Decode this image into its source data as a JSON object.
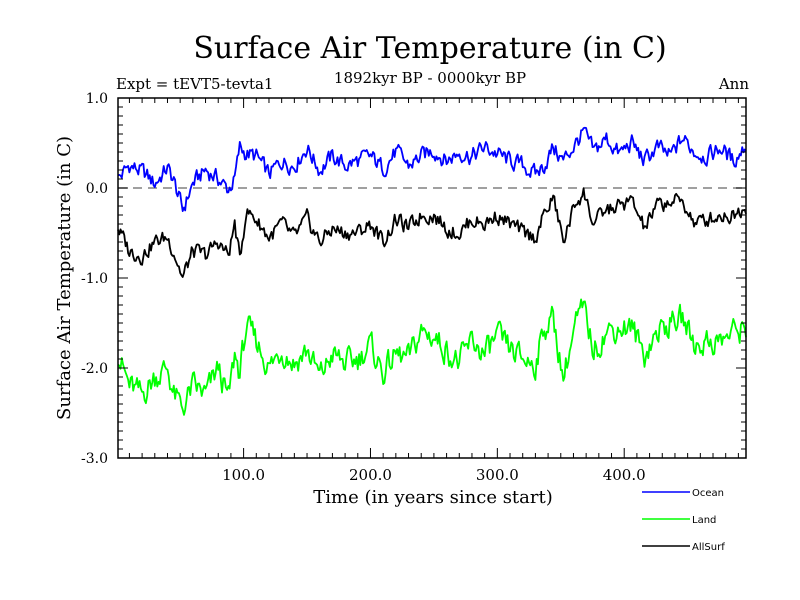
{
  "chart_data": {
    "type": "line",
    "title": "Surface Air Temperature (in C)",
    "subtitle": "1892kyr BP - 0000kyr BP",
    "left_label": "Expt = tEVT5-tevta1",
    "right_label": "Ann",
    "xlabel": "Time (in years since start)",
    "ylabel": "Surface Air Temperature (in C)",
    "xlim": [
      1,
      496
    ],
    "ylim": [
      -3.0,
      1.0
    ],
    "x_ticks": [
      100,
      200,
      300,
      400
    ],
    "x_tick_labels": [
      "100.0",
      "200.0",
      "300.0",
      "400.0"
    ],
    "y_ticks": [
      1.0,
      0.0,
      -1.0,
      -2.0,
      -3.0
    ],
    "y_tick_labels": [
      "1.0",
      "0.0",
      "-1.0",
      "-2.0",
      "-3.0"
    ],
    "reference_line": {
      "y": 0.0,
      "style": "dashed",
      "color": "#808080"
    },
    "legend_position": "bottom-right",
    "series": [
      {
        "name": "Ocean",
        "color": "#0000ff",
        "x": [
          1,
          10,
          20,
          30,
          40,
          45,
          52,
          60,
          70,
          80,
          88,
          93,
          97,
          102,
          110,
          120,
          130,
          140,
          150,
          160,
          170,
          180,
          190,
          200,
          210,
          220,
          230,
          240,
          250,
          260,
          270,
          280,
          290,
          300,
          310,
          320,
          330,
          337,
          344,
          352,
          362,
          368,
          376,
          386,
          396,
          406,
          416,
          426,
          436,
          446,
          456,
          466,
          476,
          486,
          496
        ],
        "values": [
          0.1,
          0.25,
          0.18,
          0.05,
          0.22,
          0.08,
          -0.25,
          0.05,
          0.2,
          0.1,
          -0.02,
          0.1,
          0.45,
          0.38,
          0.35,
          0.15,
          0.3,
          0.25,
          0.45,
          0.2,
          0.35,
          0.25,
          0.3,
          0.35,
          0.22,
          0.4,
          0.25,
          0.35,
          0.42,
          0.3,
          0.4,
          0.35,
          0.45,
          0.38,
          0.3,
          0.25,
          0.15,
          0.25,
          0.45,
          0.3,
          0.5,
          0.62,
          0.4,
          0.55,
          0.38,
          0.5,
          0.3,
          0.45,
          0.35,
          0.55,
          0.4,
          0.35,
          0.45,
          0.3,
          0.48
        ]
      },
      {
        "name": "Land",
        "color": "#00ff00",
        "x": [
          1,
          10,
          20,
          30,
          40,
          45,
          52,
          60,
          70,
          80,
          88,
          93,
          97,
          102,
          110,
          120,
          130,
          140,
          150,
          160,
          170,
          180,
          190,
          200,
          210,
          220,
          230,
          240,
          250,
          260,
          270,
          280,
          290,
          300,
          310,
          320,
          330,
          337,
          344,
          352,
          362,
          368,
          376,
          386,
          396,
          406,
          416,
          426,
          436,
          446,
          456,
          466,
          476,
          486,
          496
        ],
        "values": [
          -1.85,
          -2.2,
          -2.3,
          -2.1,
          -2.0,
          -2.3,
          -2.45,
          -2.2,
          -2.3,
          -2.0,
          -2.35,
          -1.85,
          -2.05,
          -1.55,
          -1.7,
          -2.0,
          -1.8,
          -1.95,
          -1.8,
          -2.1,
          -1.85,
          -1.95,
          -1.9,
          -1.75,
          -2.05,
          -1.85,
          -1.9,
          -1.6,
          -1.65,
          -1.8,
          -1.95,
          -1.7,
          -1.85,
          -1.65,
          -1.8,
          -1.9,
          -1.95,
          -1.55,
          -1.45,
          -2.1,
          -1.5,
          -1.35,
          -1.8,
          -1.6,
          -1.55,
          -1.55,
          -1.85,
          -1.6,
          -1.5,
          -1.45,
          -1.75,
          -1.7,
          -1.7,
          -1.6,
          -1.55
        ]
      },
      {
        "name": "AllSurf",
        "color": "#000000",
        "x": [
          1,
          10,
          20,
          30,
          40,
          45,
          52,
          60,
          70,
          80,
          88,
          93,
          97,
          102,
          110,
          120,
          130,
          140,
          150,
          160,
          170,
          180,
          190,
          200,
          210,
          220,
          230,
          240,
          250,
          260,
          270,
          280,
          290,
          300,
          310,
          320,
          330,
          337,
          344,
          352,
          362,
          368,
          376,
          386,
          396,
          406,
          416,
          426,
          436,
          446,
          456,
          466,
          476,
          486,
          496
        ],
        "values": [
          -0.45,
          -0.7,
          -0.75,
          -0.6,
          -0.55,
          -0.7,
          -1.0,
          -0.7,
          -0.75,
          -0.6,
          -0.75,
          -0.4,
          -0.8,
          -0.25,
          -0.35,
          -0.55,
          -0.4,
          -0.55,
          -0.35,
          -0.6,
          -0.45,
          -0.5,
          -0.5,
          -0.4,
          -0.6,
          -0.35,
          -0.45,
          -0.3,
          -0.3,
          -0.45,
          -0.5,
          -0.35,
          -0.4,
          -0.3,
          -0.4,
          -0.5,
          -0.55,
          -0.3,
          -0.1,
          -0.6,
          -0.15,
          -0.05,
          -0.4,
          -0.25,
          -0.2,
          -0.15,
          -0.45,
          -0.2,
          -0.15,
          -0.15,
          -0.4,
          -0.35,
          -0.3,
          -0.3,
          -0.2
        ]
      }
    ]
  }
}
